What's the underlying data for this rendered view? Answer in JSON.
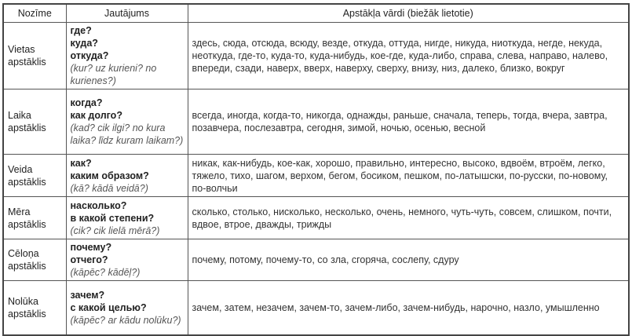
{
  "headers": [
    "Nozīme",
    "Jautājums",
    "Apstākļa vārdi (biežāk lietotie)"
  ],
  "rows": [
    {
      "meaning": [
        "Vietas",
        "apstāklis"
      ],
      "questions": [
        "где?",
        "куда?",
        "откуда?"
      ],
      "latvian": "(kur? uz kurieni? no kurienes?)",
      "words": "здесь, сюда, отсюда, всюду, везде, откуда, оттуда, нигде, никуда, ниоткуда, негде, некуда, неоткуда, где-то, куда-то, куда-нибудь, кое-где, куда-либо, справа, слева, направо, налево, впереди, сзади, наверх, вверх, наверху, сверху, внизу, низ, далеко, близко, вокруг"
    },
    {
      "meaning": [
        "Laika",
        "apstāklis"
      ],
      "questions": [
        "когда?",
        "как долго?"
      ],
      "latvian": "(kad? cik ilgi? no kura laika? līdz kuram laikam?)",
      "words": "всегда, иногда, когда-то, никогда, однажды, раньше, сначала, теперь, тогда, вчера, завтра, позавчера, послезавтра, сегодня, зимой, ночью, осенью, весной"
    },
    {
      "meaning": [
        "Veida",
        "apstāklis"
      ],
      "questions": [
        "как?",
        "каким образом?"
      ],
      "latvian": "(kā? kādā veidā?)",
      "words": "никак, как-нибудь, кое-как, хорошо, правильно, интересно, высоко, вдвоём, втроём, легко, тяжело, тихо, шагом, верхом, бегом, босиком, пешком, по-латышски, по-русски, по-новому, по-волчьи"
    },
    {
      "meaning": [
        "Mēra",
        "apstāklis"
      ],
      "questions": [
        "насколько?",
        "в какой степени?"
      ],
      "latvian": "(cik? cik lielā mērā?)",
      "words": "сколько, столько, нисколько, несколько, очень, немного, чуть-чуть, совсем, слишком, почти, вдвое, втрое, дважды, трижды"
    },
    {
      "meaning": [
        "Cēloņa",
        "apstāklis"
      ],
      "questions": [
        "почему?",
        "отчего?"
      ],
      "latvian": "(kāpēc? kādēļ?)",
      "words": "почему, потому, почему-то, со зла, сгоряча, сослепу, сдуру"
    },
    {
      "meaning": [
        "Nolūka",
        "apstāklis"
      ],
      "questions": [
        "зачем?",
        "с какой целью?"
      ],
      "latvian": "(kāpēc? ar kādu nolūku?)",
      "words": "зачем, затем, незачем, зачем-то, зачем-либо, зачем-нибудь, нарочно, назло, умышленно"
    }
  ]
}
